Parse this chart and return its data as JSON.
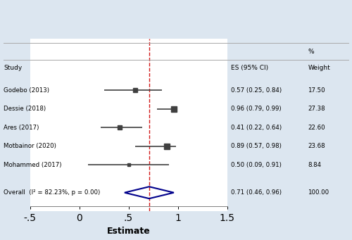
{
  "studies": [
    "Godebo (2013)",
    "Dessie (2018)",
    "Ares (2017)",
    "Motbainor (2020)",
    "Mohammed (2017)"
  ],
  "estimates": [
    0.57,
    0.96,
    0.41,
    0.89,
    0.5
  ],
  "ci_low": [
    0.25,
    0.79,
    0.22,
    0.57,
    0.09
  ],
  "ci_high": [
    0.84,
    0.99,
    0.64,
    0.98,
    0.91
  ],
  "weights": [
    "17.50",
    "27.38",
    "22.60",
    "23.68",
    "8.84"
  ],
  "ci_labels": [
    "0.57 (0.25, 0.84)",
    "0.96 (0.79, 0.99)",
    "0.41 (0.22, 0.64)",
    "0.89 (0.57, 0.98)",
    "0.50 (0.09, 0.91)"
  ],
  "overall_estimate": 0.71,
  "overall_ci_low": 0.46,
  "overall_ci_high": 0.96,
  "overall_label": "0.71 (0.46, 0.96)",
  "overall_weight": "100.00",
  "overall_study": "Overall  (I² = 82.23%, p = 0.00)",
  "xmin": -0.5,
  "xmax": 1.5,
  "xticks": [
    -0.5,
    0,
    0.5,
    1,
    1.5
  ],
  "xtick_labels": [
    "-.5",
    "0",
    ".5",
    "1",
    "1.5"
  ],
  "vline_x": 0.71,
  "header_study": "Study",
  "header_es": "ES (95% CI)",
  "header_weight": "Weight",
  "header_pct": "%",
  "xlabel": "Estimate",
  "bg_color": "#dce6f0",
  "plot_bg_color": "#ffffff",
  "diamond_color": "#00008B",
  "ci_line_color": "#404040",
  "vline_color": "#cc0000",
  "text_color": "#000000"
}
